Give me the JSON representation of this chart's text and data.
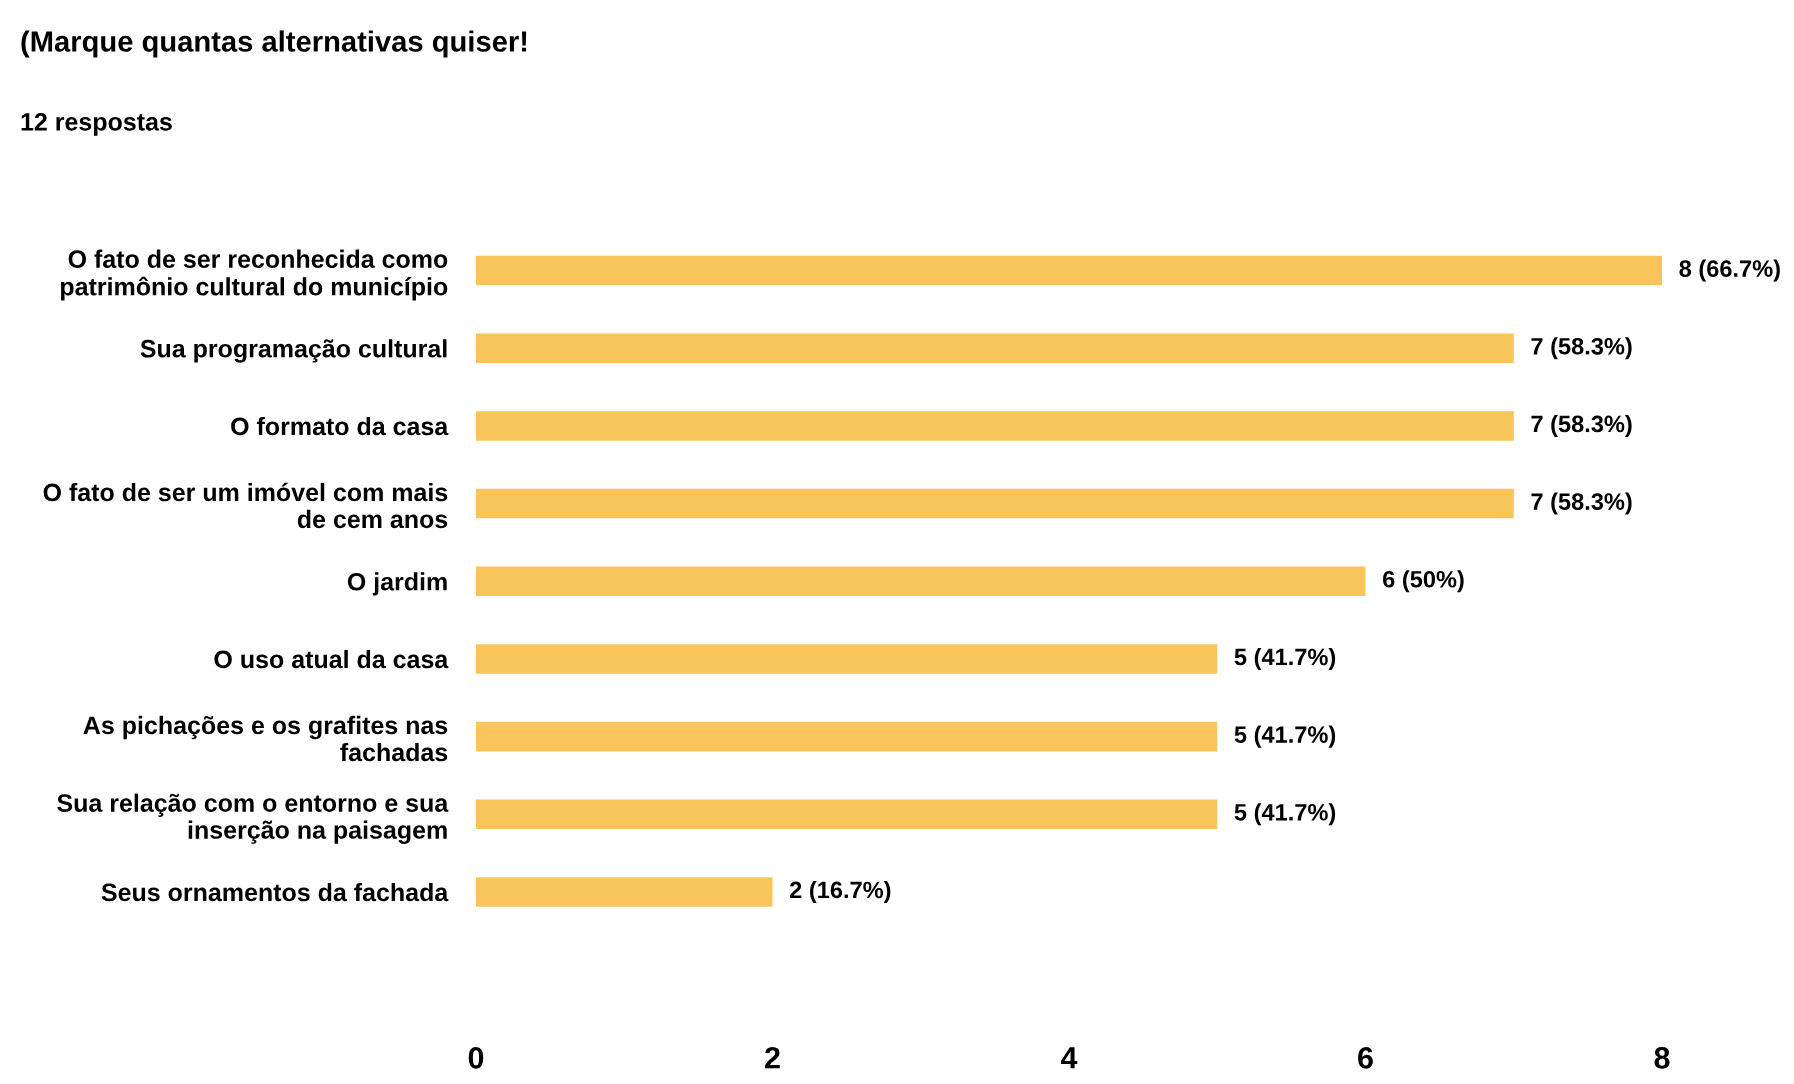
{
  "chart_data": {
    "type": "bar",
    "orientation": "horizontal",
    "title": "(Marque quantas alternativas quiser!",
    "subtitle": "12 respostas",
    "categories": [
      "O fato de ser reconhecida como\npatrimônio cultural do município",
      "Sua programação cultural",
      "O formato da casa",
      "O fato de ser um imóvel com mais\nde cem anos",
      "O jardim",
      "O uso atual da casa",
      "As pichações e os grafites nas\nfachadas",
      "Sua relação com o entorno e sua\ninserção na paisagem",
      "Seus ornamentos da fachada"
    ],
    "values": [
      8,
      7,
      7,
      7,
      6,
      5,
      5,
      5,
      2
    ],
    "value_labels": [
      "8 (66.7%)",
      "7 (58.3%)",
      "7 (58.3%)",
      "7 (58.3%)",
      "6 (50%)",
      "5 (41.7%)",
      "5 (41.7%)",
      "5 (41.7%)",
      "2 (16.7%)"
    ],
    "color": "#f9c55b",
    "xlim": [
      0,
      8
    ],
    "xticks": [
      0,
      2,
      4,
      6,
      8
    ],
    "grid": false,
    "legend": false
  }
}
